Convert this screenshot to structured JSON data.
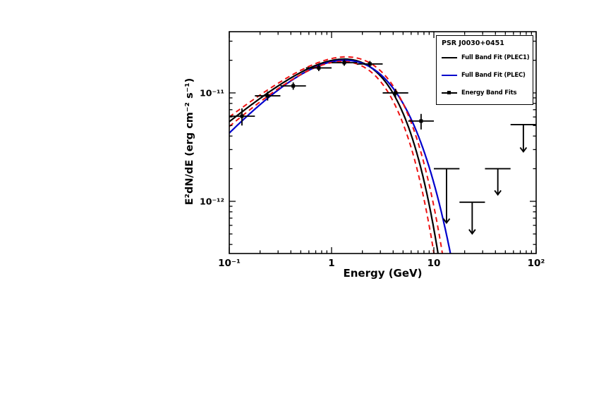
{
  "page": {
    "background": "#ffffff"
  },
  "chart_data": {
    "type": "line+scatter (pulsar SED, log-log)",
    "title": "PSR J0030+0451",
    "xlabel": "Energy (GeV)",
    "ylabel": "E²dN/dE (erg cm⁻² s⁻¹)",
    "xscale": "log",
    "yscale": "log",
    "xlim": [
      0.1,
      100
    ],
    "ylim": [
      3.3e-13,
      3.67e-11
    ],
    "grid": false,
    "x_ticks": [
      {
        "v": 0.1,
        "label": "10⁻¹"
      },
      {
        "v": 1,
        "label": "1"
      },
      {
        "v": 10,
        "label": "10"
      },
      {
        "v": 100,
        "label": "10²"
      }
    ],
    "y_ticks": [
      {
        "v": 1e-11,
        "label": "10⁻¹¹"
      },
      {
        "v": 1e-12,
        "label": "10⁻¹²"
      }
    ],
    "curves": [
      {
        "name": "full-band-fit-plec1",
        "color": "#000000",
        "dash": "none",
        "width": 2.2,
        "model": "plec",
        "a": 0.8,
        "b": 1.0,
        "Ec": 1.66,
        "Ep": 1.33,
        "peak": 2.05e-11
      },
      {
        "name": "full-band-fit-plec",
        "color": "#0000cc",
        "dash": "none",
        "width": 2.2,
        "model": "plec",
        "a": 1.1,
        "b": 0.7,
        "Ec": 0.708,
        "Ep": 1.35,
        "peak": 2e-11
      },
      {
        "name": "plec1-uncertainty-upper",
        "color": "#ee1111",
        "dash": "7,5",
        "width": 2,
        "model": "plec",
        "a": 0.75,
        "b": 1.0,
        "Ec": 1.85,
        "Ep": 1.3875,
        "peak": 2.15e-11
      },
      {
        "name": "plec1-uncertainty-lower",
        "color": "#ee1111",
        "dash": "7,5",
        "width": 2,
        "model": "plec",
        "a": 0.85,
        "b": 1.0,
        "Ec": 1.5,
        "Ep": 1.275,
        "peak": 1.95e-11
      }
    ],
    "points": [
      {
        "E": 0.133,
        "Elo": 0.1,
        "Ehi": 0.178,
        "F": 6.1e-12,
        "Ferr": 1.1e-12
      },
      {
        "E": 0.237,
        "Elo": 0.178,
        "Ehi": 0.316,
        "F": 9.4e-12,
        "Ferr": 9e-13
      },
      {
        "E": 0.422,
        "Elo": 0.316,
        "Ehi": 0.562,
        "F": 1.16e-11,
        "Ferr": 9e-13
      },
      {
        "E": 0.75,
        "Elo": 0.562,
        "Ehi": 1.0,
        "F": 1.7e-11,
        "Ferr": 1.1e-12
      },
      {
        "E": 1.33,
        "Elo": 1.0,
        "Ehi": 1.78,
        "F": 1.9e-11,
        "Ferr": 1.2e-12
      },
      {
        "E": 2.37,
        "Elo": 1.78,
        "Ehi": 3.16,
        "F": 1.85e-11,
        "Ferr": 1.2e-12
      },
      {
        "E": 4.22,
        "Elo": 3.16,
        "Ehi": 5.62,
        "F": 1e-11,
        "Ferr": 9e-13
      },
      {
        "E": 7.5,
        "Elo": 5.62,
        "Ehi": 10.0,
        "F": 5.5e-12,
        "Ferr": 9e-13
      }
    ],
    "upper_limits": [
      {
        "E": 13.3,
        "Elo": 10.0,
        "Ehi": 17.8,
        "F": 2e-12,
        "arrow_dex": 0.5
      },
      {
        "E": 23.7,
        "Elo": 17.8,
        "Ehi": 31.6,
        "F": 9.8e-13,
        "arrow_dex": 0.29
      },
      {
        "E": 42.2,
        "Elo": 31.6,
        "Ehi": 56.2,
        "F": 2e-12,
        "arrow_dex": 0.24
      },
      {
        "E": 75.0,
        "Elo": 56.2,
        "Ehi": 100.0,
        "F": 5.1e-12,
        "arrow_dex": 0.25
      }
    ],
    "marker": {
      "shape": "square",
      "size": 5,
      "color": "#000000"
    },
    "legend": {
      "position": "top-right",
      "title": "PSR J0030+0451",
      "entries": [
        {
          "label": "Full Band Fit (PLEC1)",
          "style": "line",
          "color": "#000000"
        },
        {
          "label": "Full Band Fit (PLEC)",
          "style": "line",
          "color": "#0000cc"
        },
        {
          "label": "Energy Band Fits",
          "style": "marker",
          "color": "#000000"
        }
      ]
    }
  }
}
